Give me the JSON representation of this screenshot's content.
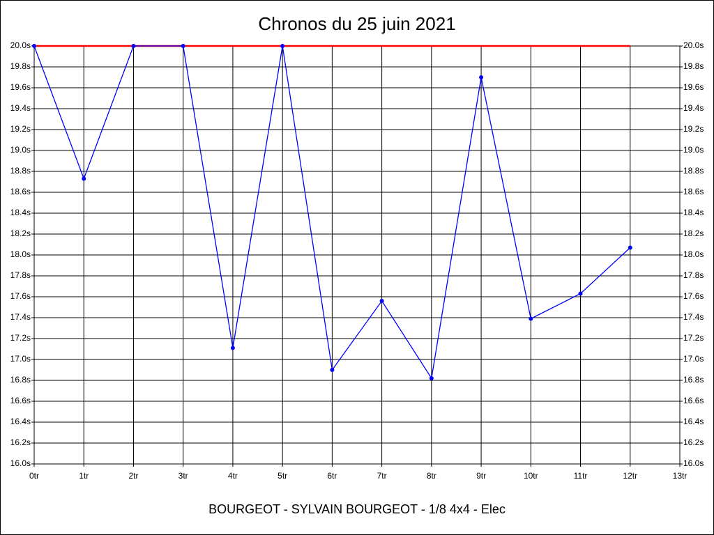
{
  "chart_data": {
    "type": "line",
    "title": "Chronos du 25 juin 2021",
    "xlabel": "BOURGEOT - SYLVAIN BOURGEOT - 1/8 4x4 - Elec",
    "x": [
      0,
      1,
      2,
      3,
      4,
      5,
      6,
      7,
      8,
      9,
      10,
      11,
      12
    ],
    "series": [
      {
        "color": "#0000ff",
        "values": [
          20.0,
          18.73,
          20.0,
          20.0,
          17.11,
          20.0,
          16.9,
          17.56,
          16.82,
          19.7,
          17.39,
          17.63,
          18.07
        ]
      },
      {
        "color": "#ff0000",
        "values": [
          20.0,
          20.0,
          20.0,
          20.0,
          20.0,
          20.0,
          20.0,
          20.0,
          20.0,
          20.0,
          20.0,
          20.0,
          20.0
        ]
      }
    ],
    "xlim": [
      0,
      13
    ],
    "xticks": [
      {
        "value": 0,
        "label": "0tr"
      },
      {
        "value": 1,
        "label": "1tr"
      },
      {
        "value": 2,
        "label": "2tr"
      },
      {
        "value": 3,
        "label": "3tr"
      },
      {
        "value": 4,
        "label": "4tr"
      },
      {
        "value": 5,
        "label": "5tr"
      },
      {
        "value": 6,
        "label": "6tr"
      },
      {
        "value": 7,
        "label": "7tr"
      },
      {
        "value": 8,
        "label": "8tr"
      },
      {
        "value": 9,
        "label": "9tr"
      },
      {
        "value": 10,
        "label": "10tr"
      },
      {
        "value": 11,
        "label": "11tr"
      },
      {
        "value": 12,
        "label": "12tr"
      },
      {
        "value": 13,
        "label": "13tr"
      }
    ],
    "ylim": [
      16,
      20
    ],
    "yticks": [
      {
        "value": 16.0,
        "label": "16.0s"
      },
      {
        "value": 16.2,
        "label": "16.2s"
      },
      {
        "value": 16.4,
        "label": "16.4s"
      },
      {
        "value": 16.6,
        "label": "16.6s"
      },
      {
        "value": 16.8,
        "label": "16.8s"
      },
      {
        "value": 17.0,
        "label": "17.0s"
      },
      {
        "value": 17.2,
        "label": "17.2s"
      },
      {
        "value": 17.4,
        "label": "17.4s"
      },
      {
        "value": 17.6,
        "label": "17.6s"
      },
      {
        "value": 17.8,
        "label": "17.8s"
      },
      {
        "value": 18.0,
        "label": "18.0s"
      },
      {
        "value": 18.2,
        "label": "18.2s"
      },
      {
        "value": 18.4,
        "label": "18.4s"
      },
      {
        "value": 18.6,
        "label": "18.6s"
      },
      {
        "value": 18.8,
        "label": "18.8s"
      },
      {
        "value": 19.0,
        "label": "19.0s"
      },
      {
        "value": 19.2,
        "label": "19.2s"
      },
      {
        "value": 19.4,
        "label": "19.4s"
      },
      {
        "value": 19.6,
        "label": "19.6s"
      },
      {
        "value": 19.8,
        "label": "19.8s"
      },
      {
        "value": 20.0,
        "label": "20.0s"
      }
    ],
    "grid": true
  }
}
